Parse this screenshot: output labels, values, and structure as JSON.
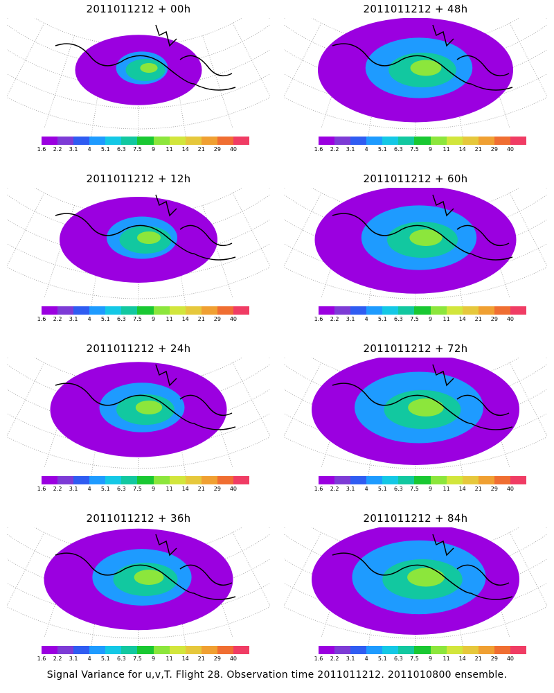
{
  "panels": [
    {
      "title": "2011011212 + 00h",
      "intensity": 0.3,
      "spread": 0.35
    },
    {
      "title": "2011011212 + 48h",
      "intensity": 0.75,
      "spread": 0.9
    },
    {
      "title": "2011011212 + 12h",
      "intensity": 0.5,
      "spread": 0.6
    },
    {
      "title": "2011011212 + 60h",
      "intensity": 0.8,
      "spread": 0.95
    },
    {
      "title": "2011011212 + 24h",
      "intensity": 0.6,
      "spread": 0.75
    },
    {
      "title": "2011011212 + 72h",
      "intensity": 0.9,
      "spread": 1.0
    },
    {
      "title": "2011011212 + 36h",
      "intensity": 0.7,
      "spread": 0.85
    },
    {
      "title": "2011011212 + 84h",
      "intensity": 0.95,
      "spread": 1.0
    }
  ],
  "colorbar": {
    "labels": [
      "1.6",
      "2.2",
      "3.1",
      "4",
      "5.1",
      "6.3",
      "7.5",
      "9",
      "11",
      "14",
      "21",
      "29",
      "40"
    ],
    "colors": [
      "#9b00e0",
      "#7d3bd6",
      "#2f5cf2",
      "#1e9bff",
      "#14c8e6",
      "#12c8a0",
      "#19c832",
      "#8ce63c",
      "#d2e63c",
      "#e6c83c",
      "#f0a032",
      "#f06e32",
      "#f03c64"
    ]
  },
  "caption": "Signal Variance for u,v,T. Flight 28. Observation time 2011011212. 2011010800 ensemble."
}
